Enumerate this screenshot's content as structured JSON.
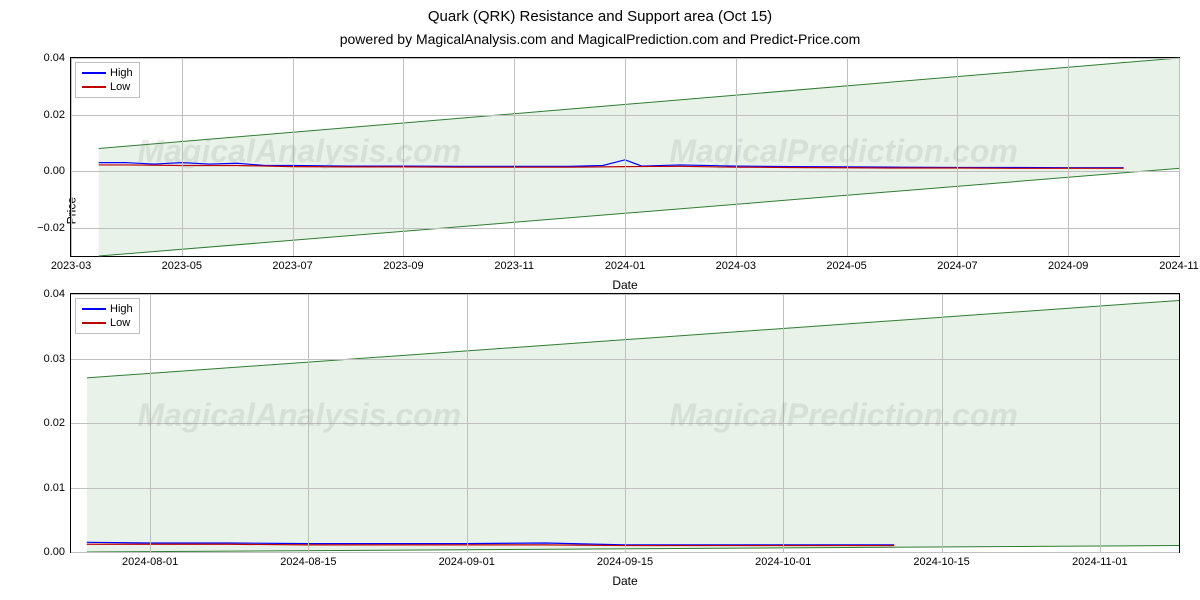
{
  "title": "Quark (QRK) Resistance and Support area (Oct 15)",
  "subtitle": "powered by MagicalAnalysis.com and MagicalPrediction.com and Predict-Price.com",
  "watermarks": {
    "left": "MagicalAnalysis.com",
    "right": "MagicalPrediction.com",
    "fontsize": 32,
    "color_rgba": "rgba(120,120,120,0.15)"
  },
  "chart1": {
    "type": "line-with-shaded-band",
    "xlabel": "Date",
    "ylabel": "Price",
    "ylim": [
      -0.03,
      0.04
    ],
    "yticks": [
      {
        "value": -0.02,
        "label": "−0.02"
      },
      {
        "value": 0.0,
        "label": "0.00"
      },
      {
        "value": 0.02,
        "label": "0.02"
      },
      {
        "value": 0.04,
        "label": "0.04"
      }
    ],
    "xlim_index": [
      0,
      20
    ],
    "xticks": [
      {
        "index": 0,
        "label": "2023-03"
      },
      {
        "index": 2,
        "label": "2023-05"
      },
      {
        "index": 4,
        "label": "2023-07"
      },
      {
        "index": 6,
        "label": "2023-09"
      },
      {
        "index": 8,
        "label": "2023-11"
      },
      {
        "index": 10,
        "label": "2024-01"
      },
      {
        "index": 12,
        "label": "2024-03"
      },
      {
        "index": 14,
        "label": "2024-05"
      },
      {
        "index": 16,
        "label": "2024-07"
      },
      {
        "index": 18,
        "label": "2024-09"
      },
      {
        "index": 20,
        "label": "2024-11"
      }
    ],
    "shaded_band": {
      "x_start_index": 0.5,
      "x_end_index": 20,
      "y_top_start": 0.008,
      "y_top_end": 0.04,
      "y_bot_start": -0.03,
      "y_bot_end": 0.001,
      "fill_color": "#d9ead9",
      "band_line_color": "#2e7d32",
      "fill_opacity": 0.6
    },
    "series_high": {
      "label": "High",
      "color": "#0000ff",
      "line_width": 1.2,
      "data": [
        [
          0.5,
          0.003
        ],
        [
          1,
          0.003
        ],
        [
          1.5,
          0.0025
        ],
        [
          2,
          0.003
        ],
        [
          2.5,
          0.0025
        ],
        [
          3,
          0.0028
        ],
        [
          3.5,
          0.002
        ],
        [
          4,
          0.002
        ],
        [
          5,
          0.0018
        ],
        [
          6,
          0.0018
        ],
        [
          7,
          0.0017
        ],
        [
          8,
          0.0017
        ],
        [
          9,
          0.0017
        ],
        [
          9.6,
          0.002
        ],
        [
          10,
          0.004
        ],
        [
          10.3,
          0.0018
        ],
        [
          11,
          0.0022
        ],
        [
          12,
          0.0018
        ],
        [
          13,
          0.0016
        ],
        [
          14,
          0.0015
        ],
        [
          15,
          0.0014
        ],
        [
          16,
          0.0013
        ],
        [
          17,
          0.0013
        ],
        [
          18,
          0.0012
        ],
        [
          19,
          0.0012
        ]
      ]
    },
    "series_low": {
      "label": "Low",
      "color": "#c00000",
      "line_width": 1.2,
      "data": [
        [
          0.5,
          0.0022
        ],
        [
          1,
          0.0022
        ],
        [
          2,
          0.002
        ],
        [
          3,
          0.002
        ],
        [
          4,
          0.0016
        ],
        [
          5,
          0.0015
        ],
        [
          6,
          0.0015
        ],
        [
          7,
          0.0014
        ],
        [
          8,
          0.0014
        ],
        [
          9,
          0.0014
        ],
        [
          10,
          0.0016
        ],
        [
          11,
          0.0017
        ],
        [
          12,
          0.0014
        ],
        [
          13,
          0.0013
        ],
        [
          14,
          0.0012
        ],
        [
          15,
          0.0011
        ],
        [
          16,
          0.0011
        ],
        [
          17,
          0.001
        ],
        [
          18,
          0.001
        ],
        [
          19,
          0.001
        ]
      ]
    }
  },
  "chart2": {
    "type": "line-with-shaded-band",
    "xlabel": "Date",
    "ylim": [
      0.0,
      0.04
    ],
    "yticks": [
      {
        "value": 0.0,
        "label": "0.00"
      },
      {
        "value": 0.01,
        "label": "0.01"
      },
      {
        "value": 0.02,
        "label": "0.02"
      },
      {
        "value": 0.03,
        "label": "0.03"
      },
      {
        "value": 0.04,
        "label": "0.04"
      }
    ],
    "xlim_index": [
      0,
      7
    ],
    "xticks": [
      {
        "index": 0.5,
        "label": "2024-08-01"
      },
      {
        "index": 1.5,
        "label": "2024-08-15"
      },
      {
        "index": 2.5,
        "label": "2024-09-01"
      },
      {
        "index": 3.5,
        "label": "2024-09-15"
      },
      {
        "index": 4.5,
        "label": "2024-10-01"
      },
      {
        "index": 5.5,
        "label": "2024-10-15"
      },
      {
        "index": 6.5,
        "label": "2024-11-01"
      }
    ],
    "shaded_band": {
      "x_start_index": 0.1,
      "x_end_index": 7,
      "y_top_start": 0.027,
      "y_top_end": 0.039,
      "y_bot_start": 0.0,
      "y_bot_end": 0.001,
      "fill_color": "#d9ead9",
      "band_line_color": "#2e7d32",
      "fill_opacity": 0.6
    },
    "series_high": {
      "label": "High",
      "color": "#0000ff",
      "line_width": 1.2,
      "data": [
        [
          0.1,
          0.0015
        ],
        [
          0.5,
          0.0014
        ],
        [
          1,
          0.0014
        ],
        [
          1.5,
          0.0013
        ],
        [
          2,
          0.0013
        ],
        [
          2.5,
          0.0013
        ],
        [
          3,
          0.0014
        ],
        [
          3.5,
          0.0011
        ],
        [
          4,
          0.0011
        ],
        [
          4.5,
          0.0011
        ],
        [
          5,
          0.0011
        ],
        [
          5.2,
          0.0011
        ]
      ]
    },
    "series_low": {
      "label": "Low",
      "color": "#c00000",
      "line_width": 1.2,
      "data": [
        [
          0.1,
          0.0012
        ],
        [
          0.5,
          0.0012
        ],
        [
          1,
          0.0012
        ],
        [
          1.5,
          0.0011
        ],
        [
          2,
          0.0011
        ],
        [
          2.5,
          0.0011
        ],
        [
          3,
          0.0011
        ],
        [
          3.5,
          0.001
        ],
        [
          4,
          0.001
        ],
        [
          4.5,
          0.001
        ],
        [
          5,
          0.001
        ],
        [
          5.2,
          0.001
        ]
      ]
    }
  },
  "style": {
    "background_color": "#ffffff",
    "grid_color": "#bfbfbf",
    "axis_color": "#000000",
    "tick_fontsize": 11,
    "label_fontsize": 12,
    "title_fontsize": 15,
    "subtitle_fontsize": 14
  }
}
